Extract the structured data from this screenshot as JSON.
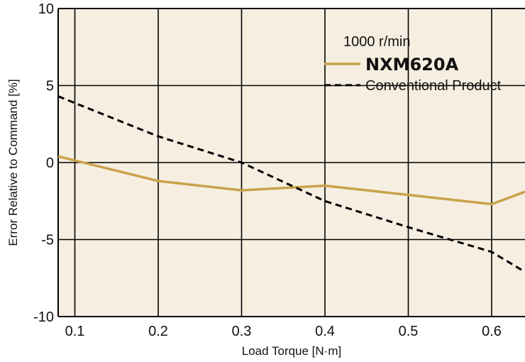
{
  "chart_data": {
    "type": "line",
    "xlabel": "Load Torque [N·m]",
    "ylabel": "Error Relative to Command [%]",
    "xlim": [
      0.08,
      0.64
    ],
    "ylim": [
      -10,
      10
    ],
    "x_ticks": [
      "0.1",
      "0.2",
      "0.3",
      "0.4",
      "0.5",
      "0.6"
    ],
    "y_ticks": [
      "10",
      "5",
      "0",
      "-5",
      "-10"
    ],
    "grid": true,
    "legend_position": "top-right",
    "legend_title": "1000 r/min",
    "colors": {
      "plot_background": "#f6eee1",
      "grid": "#000000",
      "nxm": "#c9a24a",
      "conventional": "#000000"
    },
    "series": [
      {
        "name": "NXM620A",
        "style": "solid",
        "x": [
          0.08,
          0.2,
          0.3,
          0.4,
          0.5,
          0.6,
          0.64
        ],
        "y": [
          0.4,
          -1.2,
          -1.8,
          -1.5,
          -2.1,
          -2.7,
          -1.9
        ]
      },
      {
        "name": "Conventional Product",
        "style": "dashed",
        "x": [
          0.08,
          0.2,
          0.3,
          0.4,
          0.5,
          0.6,
          0.64
        ],
        "y": [
          4.3,
          1.7,
          0.0,
          -2.5,
          -4.2,
          -5.8,
          -7.1
        ]
      }
    ]
  }
}
